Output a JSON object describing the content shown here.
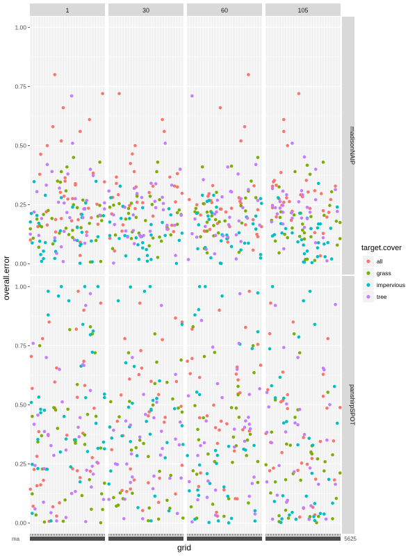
{
  "chart_data": {
    "type": "scatter",
    "facet_columns": [
      "1",
      "30",
      "60",
      "105"
    ],
    "facet_rows": [
      "madisonNAIP",
      "panshirpSPOT"
    ],
    "xlabel": "grid",
    "ylabel": "overall.error",
    "y_ticks": [
      "0.00",
      "0.25",
      "0.50",
      "0.75",
      "1.00"
    ],
    "ylim": [
      0,
      1
    ],
    "legend": {
      "title": "target.cover",
      "position": "right",
      "entries": [
        {
          "name": "all",
          "color": "#F8766D"
        },
        {
          "name": "grass",
          "color": "#7CAE00"
        },
        {
          "name": "impervious",
          "color": "#00BFC4"
        },
        {
          "name": "tree",
          "color": "#C77CFF"
        }
      ]
    },
    "x_tick_label_partial": "ma",
    "x_tick_label_partial_right": "5625",
    "x_categories_per_panel": 80,
    "points_per_series_per_panel": 30,
    "series_profiles": {
      "madisonNAIP": {
        "all": {
          "mean": 0.25,
          "sd": 0.09,
          "outliers": [
            0.8,
            0.72,
            0.66,
            0.61,
            0.58,
            0.56,
            0.52,
            0.5
          ]
        },
        "grass": {
          "mean": 0.17,
          "sd": 0.09,
          "outliers": [
            0.45,
            0.43,
            0.41,
            0.39,
            0.35
          ]
        },
        "impervious": {
          "mean": 0.12,
          "sd": 0.09,
          "outliers": [
            0.29,
            0.28,
            0.24
          ]
        },
        "tree": {
          "mean": 0.19,
          "sd": 0.1,
          "outliers": [
            0.71,
            0.51,
            0.42,
            0.4,
            0.38
          ]
        }
      },
      "panshirpSPOT": {
        "all": {
          "mean": 0.38,
          "sd": 0.22,
          "outliers": [
            0.98,
            0.93,
            0.9,
            0.85,
            0.82,
            0.78
          ]
        },
        "grass": {
          "mean": 0.3,
          "sd": 0.22,
          "outliers": [
            0.83,
            0.8,
            0.75,
            0.72
          ]
        },
        "impervious": {
          "mean": 0.34,
          "sd": 0.26,
          "outliers": [
            1.0,
            1.0,
            1.0,
            0.98,
            0.96,
            0.94,
            0.88,
            0.84
          ]
        },
        "tree": {
          "mean": 0.3,
          "sd": 0.22,
          "outliers": [
            0.97,
            0.92,
            0.76,
            0.7,
            0.65
          ]
        }
      }
    }
  }
}
